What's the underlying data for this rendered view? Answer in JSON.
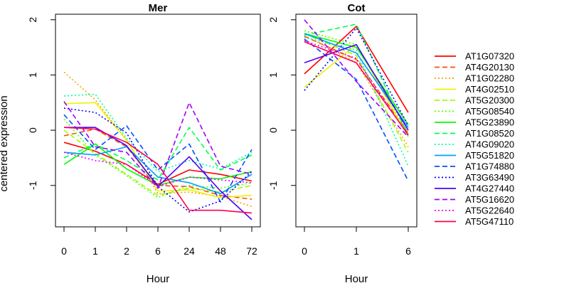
{
  "colors": [
    "#FF0000",
    "#FF4F00",
    "#FF9F00",
    "#F0F000",
    "#A0FF00",
    "#50FF00",
    "#00FF00",
    "#00FF50",
    "#00FFA0",
    "#00FFF0",
    "#00A0FF",
    "#0050FF",
    "#0000FF",
    "#5000FF",
    "#A000FF",
    "#F000FF"
  ],
  "figure": {
    "ylabel": "centered expression",
    "legend_position": "right"
  },
  "series_names": [
    "AT1G07320",
    "AT4G20130",
    "AT1G02280",
    "AT4G02510",
    "AT5G20300",
    "AT5G08540",
    "AT5G23890",
    "AT1G08520",
    "AT4G09020",
    "AT5G51820",
    "AT1G74880",
    "AT3G63490",
    "AT4G27440",
    "AT5G16620",
    "AT5G22640",
    "AT5G47110"
  ],
  "chart_data": [
    {
      "type": "line",
      "title": "Mer",
      "xlabel": "Hour",
      "ylabel": "centered expression",
      "categories": [
        "0",
        "1",
        "2",
        "6",
        "24",
        "48",
        "72"
      ],
      "ylim": [
        -1.75,
        2.1
      ],
      "yticks": [
        -1,
        0,
        1,
        2
      ],
      "grid": false,
      "series": [
        {
          "name": "AT1G07320",
          "color": "#FF0000",
          "dash": "solid",
          "values": [
            -0.22,
            -0.38,
            -0.62,
            -0.98,
            -0.72,
            -0.8,
            -0.92
          ]
        },
        {
          "name": "AT4G20130",
          "color": "#FF4F00",
          "dash": "dashed",
          "values": [
            -0.1,
            0.02,
            -0.3,
            -1.0,
            -1.02,
            -1.18,
            -1.25
          ]
        },
        {
          "name": "AT1G02280",
          "color": "#FF9F00",
          "dash": "dotted",
          "values": [
            1.05,
            0.55,
            -0.18,
            -1.15,
            -1.12,
            -1.2,
            -1.38
          ]
        },
        {
          "name": "AT4G02510",
          "color": "#F0F000",
          "dash": "solid",
          "values": [
            0.48,
            0.5,
            -0.18,
            -1.1,
            -1.08,
            -1.22,
            -1.18
          ]
        },
        {
          "name": "AT5G20300",
          "color": "#A0FF00",
          "dash": "dashed",
          "values": [
            0.0,
            -0.42,
            -0.8,
            -1.18,
            -1.05,
            -1.12,
            -1.0
          ]
        },
        {
          "name": "AT5G08540",
          "color": "#50FF00",
          "dash": "dotted",
          "values": [
            0.2,
            -0.45,
            -0.82,
            -1.22,
            -1.0,
            -1.05,
            -0.95
          ]
        },
        {
          "name": "AT5G23890",
          "color": "#00FF00",
          "dash": "solid",
          "values": [
            -0.62,
            -0.25,
            -0.7,
            -1.0,
            -0.85,
            -0.88,
            -0.75
          ]
        },
        {
          "name": "AT1G08520",
          "color": "#00FF50",
          "dash": "dashed",
          "values": [
            -0.5,
            -0.25,
            -0.55,
            -0.9,
            0.05,
            -0.72,
            -0.45
          ]
        },
        {
          "name": "AT4G09020",
          "color": "#00FFA0",
          "dash": "dotted",
          "values": [
            0.62,
            0.65,
            -0.15,
            -0.75,
            -0.55,
            -0.7,
            -0.4
          ]
        },
        {
          "name": "AT5G51820",
          "color": "#00A0FF",
          "dash": "solid",
          "values": [
            -0.4,
            -0.45,
            -0.3,
            -0.85,
            -0.95,
            -1.15,
            -0.8
          ]
        },
        {
          "name": "AT1G74880",
          "color": "#0050FF",
          "dash": "dashed",
          "values": [
            0.28,
            -0.35,
            0.08,
            -0.72,
            -0.25,
            -1.3,
            -0.35
          ]
        },
        {
          "name": "AT3G63490",
          "color": "#0000FF",
          "dash": "dotted",
          "values": [
            0.4,
            0.32,
            -0.05,
            -1.02,
            -1.48,
            -1.28,
            -0.75
          ]
        },
        {
          "name": "AT4G27440",
          "color": "#5000FF",
          "dash": "solid",
          "values": [
            0.05,
            0.05,
            -0.28,
            -1.02,
            -0.48,
            -1.1,
            -1.62
          ]
        },
        {
          "name": "AT5G16620",
          "color": "#A000FF",
          "dash": "dashed",
          "values": [
            0.52,
            -0.3,
            -0.4,
            -1.05,
            0.5,
            -0.65,
            -0.8
          ]
        },
        {
          "name": "AT5G22640",
          "color": "#F000FF",
          "dash": "dotted",
          "values": [
            -0.4,
            -0.55,
            -0.62,
            -1.02,
            -0.85,
            -0.9,
            -0.95
          ]
        },
        {
          "name": "AT5G47110",
          "color": "#FF0050",
          "dash": "solid",
          "values": [
            0.05,
            0.02,
            -0.22,
            -0.62,
            -1.45,
            -1.45,
            -1.5
          ]
        }
      ]
    },
    {
      "type": "line",
      "title": "Cot",
      "xlabel": "Hour",
      "ylabel": "",
      "categories": [
        "0",
        "1",
        "6"
      ],
      "ylim": [
        -1.75,
        2.1
      ],
      "yticks": [
        -1,
        0,
        1,
        2
      ],
      "grid": false,
      "series": [
        {
          "name": "AT1G07320",
          "color": "#FF0000",
          "dash": "solid",
          "values": [
            1.02,
            1.88,
            0.32
          ]
        },
        {
          "name": "AT4G20130",
          "color": "#FF4F00",
          "dash": "dashed",
          "values": [
            1.7,
            1.28,
            -0.05
          ]
        },
        {
          "name": "AT1G02280",
          "color": "#FF9F00",
          "dash": "dotted",
          "values": [
            1.72,
            1.22,
            -0.3
          ]
        },
        {
          "name": "AT4G02510",
          "color": "#F0F000",
          "dash": "solid",
          "values": [
            0.78,
            1.55,
            -0.12
          ]
        },
        {
          "name": "AT5G20300",
          "color": "#A0FF00",
          "dash": "dashed",
          "values": [
            1.75,
            1.35,
            -0.4
          ]
        },
        {
          "name": "AT5G08540",
          "color": "#50FF00",
          "dash": "dotted",
          "values": [
            1.8,
            1.55,
            -0.05
          ]
        },
        {
          "name": "AT5G23890",
          "color": "#00FF00",
          "dash": "solid",
          "values": [
            1.75,
            1.5,
            0.1
          ]
        },
        {
          "name": "AT1G08520",
          "color": "#00FF50",
          "dash": "dashed",
          "values": [
            1.72,
            1.92,
            -0.1
          ]
        },
        {
          "name": "AT4G09020",
          "color": "#00FFA0",
          "dash": "dotted",
          "values": [
            1.68,
            1.45,
            -0.65
          ]
        },
        {
          "name": "AT5G51820",
          "color": "#00A0FF",
          "dash": "solid",
          "values": [
            1.75,
            1.4,
            0.05
          ]
        },
        {
          "name": "AT1G74880",
          "color": "#0050FF",
          "dash": "dashed",
          "values": [
            1.65,
            0.92,
            -0.92
          ]
        },
        {
          "name": "AT3G63490",
          "color": "#0000FF",
          "dash": "dotted",
          "values": [
            0.72,
            1.85,
            0.08
          ]
        },
        {
          "name": "AT4G27440",
          "color": "#5000FF",
          "dash": "solid",
          "values": [
            1.22,
            1.55,
            0.0
          ]
        },
        {
          "name": "AT5G16620",
          "color": "#A000FF",
          "dash": "dashed",
          "values": [
            2.0,
            0.88,
            -0.12
          ]
        },
        {
          "name": "AT5G22640",
          "color": "#F000FF",
          "dash": "dotted",
          "values": [
            1.62,
            1.3,
            -0.1
          ]
        },
        {
          "name": "AT5G47110",
          "color": "#FF0050",
          "dash": "solid",
          "values": [
            1.6,
            1.22,
            -0.08
          ]
        }
      ]
    }
  ]
}
